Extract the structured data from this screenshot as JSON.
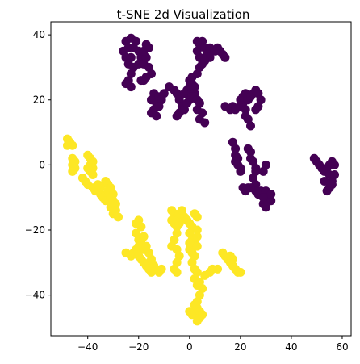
{
  "chart_data": {
    "type": "scatter",
    "title": "t-SNE 2d Visualization",
    "xlabel": "",
    "ylabel": "",
    "xlim": [
      -54.5,
      63.5
    ],
    "ylim": [
      -52.5,
      44
    ],
    "xticks": [
      -40,
      -20,
      0,
      20,
      40,
      60
    ],
    "yticks": [
      -40,
      -20,
      0,
      20,
      40
    ],
    "grid": false,
    "legend": "none",
    "series": [
      {
        "color": "#440154",
        "points": [
          [
            -25,
            38
          ],
          [
            -23,
            39
          ],
          [
            -21,
            38
          ],
          [
            -24,
            36
          ],
          [
            -26,
            35
          ],
          [
            -25,
            33
          ],
          [
            -23,
            33
          ],
          [
            -24,
            31
          ],
          [
            -22,
            30
          ],
          [
            -23,
            28
          ],
          [
            -24,
            26
          ],
          [
            -25,
            25
          ],
          [
            -23,
            24
          ],
          [
            -22,
            36
          ],
          [
            -20,
            35
          ],
          [
            -19,
            33
          ],
          [
            -20,
            31
          ],
          [
            -18,
            31
          ],
          [
            -17,
            33
          ],
          [
            -18,
            35
          ],
          [
            -16,
            36
          ],
          [
            -17,
            37
          ],
          [
            -16,
            30
          ],
          [
            -15,
            28
          ],
          [
            -17,
            27
          ],
          [
            -18,
            26
          ],
          [
            -19,
            26
          ],
          [
            -14,
            22
          ],
          [
            -15,
            20
          ],
          [
            -13,
            19
          ],
          [
            -14,
            17
          ],
          [
            -15,
            16
          ],
          [
            -13,
            15
          ],
          [
            -12,
            21
          ],
          [
            -11,
            20
          ],
          [
            -10,
            22
          ],
          [
            -12,
            18
          ],
          [
            -8,
            24
          ],
          [
            -6,
            23
          ],
          [
            -5,
            22
          ],
          [
            -4,
            20
          ],
          [
            -3,
            18
          ],
          [
            -4,
            16
          ],
          [
            -5,
            15
          ],
          [
            -2,
            17
          ],
          [
            -1,
            19
          ],
          [
            0,
            20
          ],
          [
            -2,
            22
          ],
          [
            -1,
            23
          ],
          [
            0,
            24
          ],
          [
            1,
            25
          ],
          [
            2,
            24
          ],
          [
            2,
            22
          ],
          [
            1,
            21
          ],
          [
            3,
            20
          ],
          [
            4,
            19
          ],
          [
            3,
            17
          ],
          [
            5,
            16
          ],
          [
            4,
            14
          ],
          [
            6,
            13
          ],
          [
            0,
            26
          ],
          [
            1,
            27
          ],
          [
            3,
            28
          ],
          [
            4,
            30
          ],
          [
            5,
            31
          ],
          [
            4,
            33
          ],
          [
            3,
            35
          ],
          [
            4,
            37
          ],
          [
            5,
            38
          ],
          [
            3,
            38
          ],
          [
            6,
            36
          ],
          [
            7,
            34
          ],
          [
            8,
            33
          ],
          [
            6,
            32
          ],
          [
            8,
            36
          ],
          [
            10,
            35
          ],
          [
            12,
            35
          ],
          [
            11,
            36
          ],
          [
            13,
            34
          ],
          [
            14,
            33
          ],
          [
            14,
            18
          ],
          [
            16,
            17
          ],
          [
            17,
            18
          ],
          [
            18,
            17
          ],
          [
            20,
            18
          ],
          [
            21,
            19
          ],
          [
            22,
            17
          ],
          [
            22,
            15
          ],
          [
            23,
            14
          ],
          [
            24,
            12
          ],
          [
            20,
            20
          ],
          [
            21,
            21
          ],
          [
            22,
            22
          ],
          [
            23,
            20
          ],
          [
            24,
            21
          ],
          [
            25,
            22
          ],
          [
            26,
            23
          ],
          [
            27,
            22
          ],
          [
            28,
            20
          ],
          [
            27,
            18
          ],
          [
            26,
            17
          ],
          [
            17,
            7
          ],
          [
            18,
            5
          ],
          [
            18,
            3
          ],
          [
            19,
            2
          ],
          [
            19,
            0
          ],
          [
            20,
            -1
          ],
          [
            20,
            -2
          ],
          [
            18,
            1
          ],
          [
            23,
            5
          ],
          [
            24,
            4
          ],
          [
            24,
            2
          ],
          [
            25,
            1
          ],
          [
            26,
            -1
          ],
          [
            26,
            -2
          ],
          [
            25,
            -4
          ],
          [
            26,
            -6
          ],
          [
            26,
            -8
          ],
          [
            27,
            -9
          ],
          [
            28,
            -8
          ],
          [
            21,
            -7
          ],
          [
            22,
            -8
          ],
          [
            23,
            -7
          ],
          [
            24,
            -7
          ],
          [
            30,
            -8
          ],
          [
            31,
            -10
          ],
          [
            32,
            -11
          ],
          [
            32,
            -9
          ],
          [
            29,
            -12
          ],
          [
            30,
            -13
          ],
          [
            29,
            -10
          ],
          [
            29,
            -2
          ],
          [
            30,
            0
          ],
          [
            49,
            2
          ],
          [
            50,
            1
          ],
          [
            51,
            0
          ],
          [
            52,
            -1
          ],
          [
            53,
            -2
          ],
          [
            54,
            -1
          ],
          [
            55,
            0
          ],
          [
            56,
            1
          ],
          [
            57,
            0
          ],
          [
            55,
            -3
          ],
          [
            56,
            -5
          ],
          [
            55,
            -7
          ],
          [
            54,
            -8
          ],
          [
            56,
            -6
          ],
          [
            53,
            -5
          ],
          [
            57,
            -3
          ]
        ]
      },
      {
        "color": "#fde725",
        "points": [
          [
            -48,
            8
          ],
          [
            -47,
            7
          ],
          [
            -46,
            6
          ],
          [
            -48,
            6
          ],
          [
            -46,
            2
          ],
          [
            -45,
            1
          ],
          [
            -46,
            0
          ],
          [
            -45,
            -1
          ],
          [
            -46,
            -2
          ],
          [
            -40,
            3
          ],
          [
            -39,
            2
          ],
          [
            -38,
            1
          ],
          [
            -39,
            0
          ],
          [
            -38,
            -1
          ],
          [
            -39,
            -2
          ],
          [
            -38,
            -3
          ],
          [
            -40,
            -1
          ],
          [
            -42,
            -4
          ],
          [
            -41,
            -5
          ],
          [
            -40,
            -6
          ],
          [
            -38,
            -7
          ],
          [
            -37,
            -8
          ],
          [
            -36,
            -8
          ],
          [
            -35,
            -9
          ],
          [
            -34,
            -10
          ],
          [
            -33,
            -11
          ],
          [
            -35,
            -7
          ],
          [
            -36,
            -6
          ],
          [
            -33,
            -5
          ],
          [
            -32,
            -6
          ],
          [
            -31,
            -7
          ],
          [
            -32,
            -8
          ],
          [
            -30,
            -9
          ],
          [
            -31,
            -10
          ],
          [
            -30,
            -11
          ],
          [
            -29,
            -12
          ],
          [
            -31,
            -13
          ],
          [
            -30,
            -15
          ],
          [
            -28,
            -16
          ],
          [
            -29,
            -14
          ],
          [
            -25,
            -27
          ],
          [
            -23,
            -28
          ],
          [
            -22,
            -27
          ],
          [
            -21,
            -26
          ],
          [
            -20,
            -28
          ],
          [
            -19,
            -29
          ],
          [
            -18,
            -30
          ],
          [
            -17,
            -31
          ],
          [
            -16,
            -32
          ],
          [
            -15,
            -33
          ],
          [
            -21,
            -18
          ],
          [
            -20,
            -17
          ],
          [
            -19,
            -19
          ],
          [
            -21,
            -21
          ],
          [
            -20,
            -23
          ],
          [
            -18,
            -22
          ],
          [
            -19,
            -24
          ],
          [
            -20,
            -25
          ],
          [
            -18,
            -26
          ],
          [
            -17,
            -25
          ],
          [
            -16,
            -27
          ],
          [
            -15,
            -29
          ],
          [
            -14,
            -31
          ],
          [
            -12,
            -33
          ],
          [
            -11,
            -32
          ],
          [
            -7,
            -14
          ],
          [
            -6,
            -15
          ],
          [
            -5,
            -16
          ],
          [
            -4,
            -15
          ],
          [
            -3,
            -14
          ],
          [
            -2,
            -16
          ],
          [
            -4,
            -18
          ],
          [
            -5,
            -19
          ],
          [
            -6,
            -18
          ],
          [
            -7,
            -17
          ],
          [
            -5,
            -21
          ],
          [
            -6,
            -23
          ],
          [
            -7,
            -25
          ],
          [
            -5,
            -26
          ],
          [
            -4,
            -28
          ],
          [
            -5,
            -30
          ],
          [
            -6,
            -32
          ],
          [
            -5,
            -33
          ],
          [
            -1,
            -17
          ],
          [
            0,
            -18
          ],
          [
            1,
            -19
          ],
          [
            0,
            -21
          ],
          [
            1,
            -23
          ],
          [
            2,
            -24
          ],
          [
            0,
            -26
          ],
          [
            1,
            -27
          ],
          [
            2,
            -28
          ],
          [
            0,
            -24
          ],
          [
            2,
            -15
          ],
          [
            3,
            -16
          ],
          [
            3,
            -20
          ],
          [
            3,
            -22
          ],
          [
            3,
            -25
          ],
          [
            1,
            -30
          ],
          [
            2,
            -32
          ],
          [
            3,
            -33
          ],
          [
            2,
            -35
          ],
          [
            3,
            -37
          ],
          [
            4,
            -36
          ],
          [
            5,
            -38
          ],
          [
            4,
            -40
          ],
          [
            3,
            -42
          ],
          [
            0,
            -45
          ],
          [
            1,
            -46
          ],
          [
            2,
            -45
          ],
          [
            3,
            -44
          ],
          [
            4,
            -45
          ],
          [
            4,
            -47
          ],
          [
            3,
            -48
          ],
          [
            5,
            -46
          ],
          [
            2,
            -43
          ],
          [
            6,
            -34
          ],
          [
            8,
            -33
          ],
          [
            9,
            -32
          ],
          [
            11,
            -32
          ],
          [
            13,
            -27
          ],
          [
            14,
            -28
          ],
          [
            15,
            -29
          ],
          [
            16,
            -30
          ],
          [
            17,
            -31
          ],
          [
            18,
            -32
          ],
          [
            19,
            -33
          ],
          [
            20,
            -33
          ],
          [
            16,
            -28
          ],
          [
            17,
            -29
          ]
        ]
      }
    ]
  }
}
